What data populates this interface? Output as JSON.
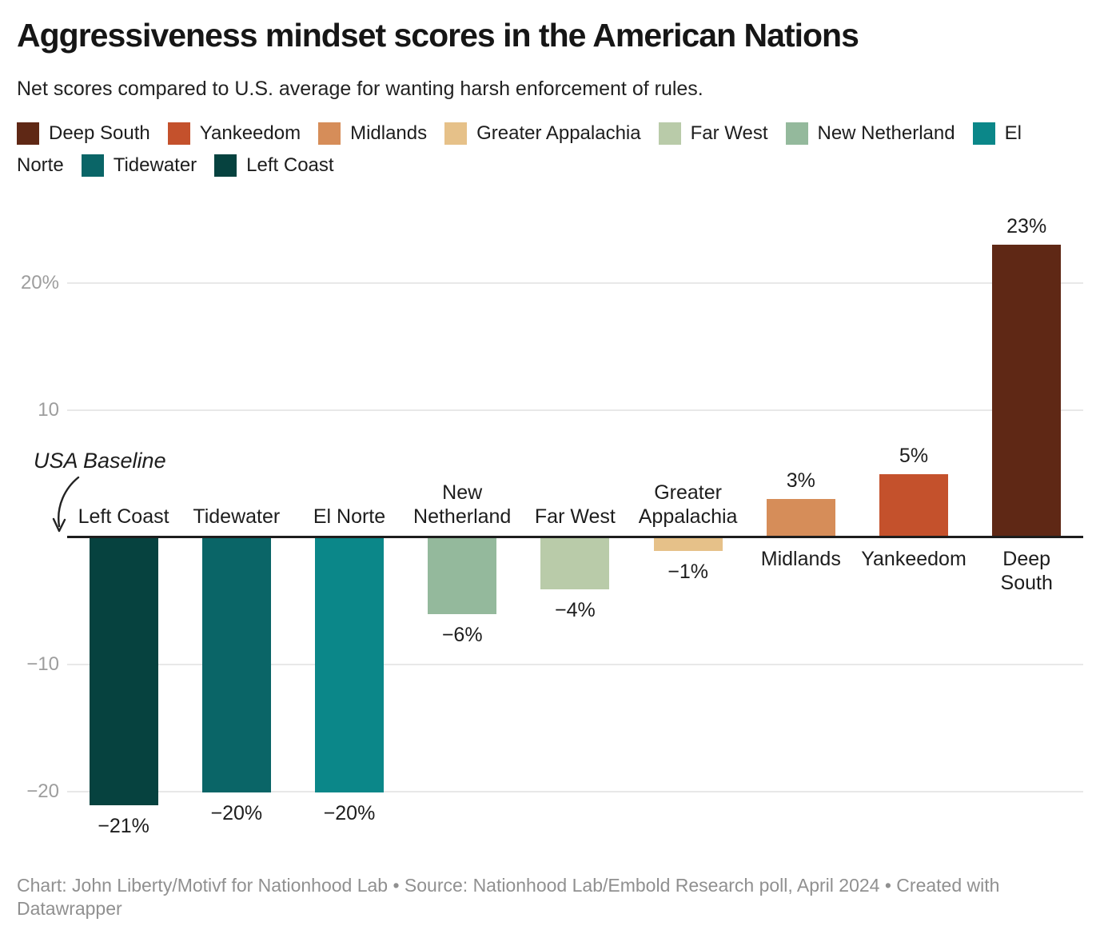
{
  "title": "Aggressiveness mindset scores in the American Nations",
  "subtitle": "Net scores compared to U.S. average for wanting harsh enforcement of rules.",
  "legend": {
    "rows": [
      [
        {
          "swatch": "#5f2815",
          "text": "Deep South"
        },
        {
          "swatch": "#c4512c",
          "text": "Yankeedom"
        },
        {
          "swatch": "#d68d59",
          "text": "Midlands"
        },
        {
          "swatch": "#e6c189",
          "text": "Greater Appalachia"
        },
        {
          "swatch": "#b9cba9",
          "text": "Far West"
        },
        {
          "swatch": "#94b99c",
          "text": "New Netherland"
        },
        {
          "swatch": "#0b8789",
          "text": "El"
        }
      ],
      [
        {
          "swatch": null,
          "text": "Norte"
        },
        {
          "swatch": "#0a6567",
          "text": "Tidewater"
        },
        {
          "swatch": "#06423f",
          "text": "Left Coast"
        }
      ]
    ]
  },
  "annotation": {
    "text": "USA Baseline"
  },
  "chart_data": {
    "type": "bar",
    "title": "Aggressiveness mindset scores in the American Nations",
    "subtitle": "Net scores compared to U.S. average for wanting harsh enforcement of rules.",
    "categories": [
      "Left Coast",
      "Tidewater",
      "El Norte",
      "New Netherland",
      "Far West",
      "Greater Appalachia",
      "Midlands",
      "Yankeedom",
      "Deep South"
    ],
    "values": [
      -21,
      -20,
      -20,
      -6,
      -4,
      -1,
      3,
      5,
      23
    ],
    "unit": "%",
    "value_labels": [
      "−21%",
      "−20%",
      "−20%",
      "−6%",
      "−4%",
      "−1%",
      "3%",
      "5%",
      "23%"
    ],
    "colors": [
      "#06423f",
      "#0a6567",
      "#0b8789",
      "#94b99c",
      "#b9cba9",
      "#e6c189",
      "#d68d59",
      "#c4512c",
      "#5f2815"
    ],
    "category_lines": [
      [
        "Left Coast"
      ],
      [
        "Tidewater"
      ],
      [
        "El Norte"
      ],
      [
        "New",
        "Netherland"
      ],
      [
        "Far West"
      ],
      [
        "Greater",
        "Appalachia"
      ],
      [
        "Midlands"
      ],
      [
        "Yankeedom"
      ],
      [
        "Deep",
        "South"
      ]
    ],
    "yticks": [
      {
        "value": 20,
        "label": "20%"
      },
      {
        "value": 10,
        "label": "10"
      },
      {
        "value": -10,
        "label": "−10"
      },
      {
        "value": -20,
        "label": "−20"
      }
    ],
    "ylim": [
      -24,
      26
    ],
    "baseline": {
      "value": 0,
      "label": "USA Baseline"
    },
    "grid": true,
    "legend_position": "top",
    "xlabel": "",
    "ylabel": ""
  },
  "footer": {
    "text": "Chart: John Liberty/Motivf for Nationhood Lab • Source: Nationhood Lab/Embold Research poll, April 2024 • Created with Datawrapper"
  }
}
